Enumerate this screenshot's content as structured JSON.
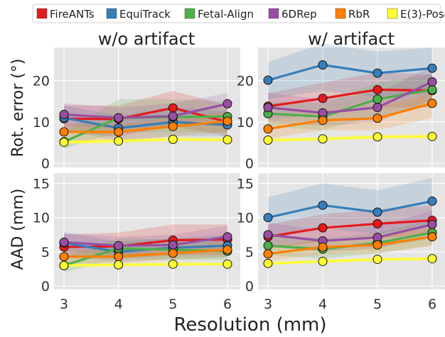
{
  "legend": {
    "placement": "top",
    "entries": [
      {
        "name": "FireANTs",
        "color": "#E41A1C"
      },
      {
        "name": "EquiTrack",
        "color": "#377EB8"
      },
      {
        "name": "Fetal-Align",
        "color": "#4DAF4A"
      },
      {
        "name": "6DRep",
        "color": "#984EA3"
      },
      {
        "name": "RbR",
        "color": "#FF7F00"
      },
      {
        "name": "E(3)-Pose",
        "color": "#FFFF33"
      }
    ]
  },
  "shared_xlabel": "Resolution (mm)",
  "chart_data": [
    {
      "type": "line",
      "title": "w/o artifact",
      "xlabel": "",
      "ylabel": "Rot. error (°)",
      "x": [
        3,
        4,
        5,
        6
      ],
      "xticks": [
        "3",
        "4",
        "5",
        "6"
      ],
      "yticks": [
        "0",
        "10",
        "20"
      ],
      "ylim": [
        -1,
        28
      ],
      "grid": true,
      "series": [
        {
          "name": "FireANTs",
          "values": [
            10.8,
            10.7,
            13.4,
            10.0
          ],
          "band_low": [
            7.5,
            6.5,
            9.0,
            6.5
          ],
          "band_high": [
            14.0,
            14.0,
            17.5,
            14.0
          ]
        },
        {
          "name": "EquiTrack",
          "values": [
            11.0,
            8.5,
            10.0,
            9.3
          ],
          "band_low": [
            8.0,
            5.5,
            6.5,
            6.5
          ],
          "band_high": [
            14.0,
            11.5,
            13.5,
            12.5
          ]
        },
        {
          "name": "Fetal-Align",
          "values": [
            5.2,
            11.0,
            11.2,
            11.3
          ],
          "band_low": [
            3.5,
            7.5,
            7.5,
            7.5
          ],
          "band_high": [
            7.5,
            15.5,
            15.5,
            15.0
          ]
        },
        {
          "name": "6DRep",
          "values": [
            11.8,
            11.0,
            11.4,
            14.4
          ],
          "band_low": [
            9.0,
            8.5,
            8.5,
            11.0
          ],
          "band_high": [
            14.5,
            13.5,
            14.5,
            17.0
          ]
        },
        {
          "name": "RbR",
          "values": [
            7.6,
            7.6,
            8.9,
            10.2
          ],
          "band_low": [
            5.5,
            5.5,
            6.5,
            7.5
          ],
          "band_high": [
            9.5,
            9.5,
            11.0,
            12.5
          ]
        },
        {
          "name": "E(3)-Pose",
          "values": [
            5.1,
            5.4,
            5.8,
            5.7
          ],
          "band_low": [
            4.5,
            4.8,
            5.2,
            5.1
          ],
          "band_high": [
            5.7,
            6.0,
            6.4,
            6.3
          ]
        }
      ]
    },
    {
      "type": "line",
      "title": "w/ artifact",
      "xlabel": "",
      "ylabel": "",
      "x": [
        3,
        4,
        5,
        6
      ],
      "xticks": [
        "3",
        "4",
        "5",
        "6"
      ],
      "yticks": [
        "0",
        "10",
        "20"
      ],
      "ylim": [
        -1,
        28
      ],
      "grid": true,
      "series": [
        {
          "name": "FireANTs",
          "values": [
            13.8,
            15.7,
            17.8,
            17.6
          ],
          "band_low": [
            10.5,
            12.0,
            13.5,
            13.5
          ],
          "band_high": [
            17.0,
            19.5,
            22.0,
            21.5
          ]
        },
        {
          "name": "EquiTrack",
          "values": [
            20.1,
            23.8,
            21.8,
            23.0
          ],
          "band_low": [
            15.5,
            17.5,
            16.0,
            17.0
          ],
          "band_high": [
            24.5,
            29.0,
            27.0,
            28.0
          ]
        },
        {
          "name": "Fetal-Align",
          "values": [
            12.0,
            11.3,
            15.5,
            17.8
          ],
          "band_low": [
            9.0,
            8.0,
            11.5,
            14.0
          ],
          "band_high": [
            15.0,
            14.5,
            19.5,
            21.5
          ]
        },
        {
          "name": "6DRep",
          "values": [
            13.5,
            12.2,
            13.5,
            19.7
          ],
          "band_low": [
            10.0,
            9.0,
            10.0,
            15.5
          ],
          "band_high": [
            17.0,
            15.5,
            17.0,
            23.5
          ]
        },
        {
          "name": "RbR",
          "values": [
            8.3,
            10.4,
            10.9,
            14.5
          ],
          "band_low": [
            6.0,
            8.0,
            8.0,
            11.0
          ],
          "band_high": [
            10.5,
            12.5,
            13.5,
            17.0
          ]
        },
        {
          "name": "E(3)-Pose",
          "values": [
            5.6,
            5.9,
            6.4,
            6.5
          ],
          "band_low": [
            5.0,
            5.3,
            5.8,
            5.9
          ],
          "band_high": [
            6.2,
            6.5,
            7.0,
            7.1
          ]
        }
      ]
    },
    {
      "type": "line",
      "title": "",
      "xlabel": "",
      "ylabel": "AAD (mm)",
      "x": [
        3,
        4,
        5,
        6
      ],
      "xticks": [
        "3",
        "4",
        "5",
        "6"
      ],
      "yticks": [
        "0",
        "5",
        "10",
        "15"
      ],
      "ylim": [
        -0.5,
        16.5
      ],
      "grid": true,
      "series": [
        {
          "name": "FireANTs",
          "values": [
            5.7,
            5.8,
            6.7,
            6.8
          ],
          "band_low": [
            4.0,
            4.0,
            4.5,
            4.5
          ],
          "band_high": [
            7.5,
            7.8,
            9.0,
            9.0
          ]
        },
        {
          "name": "EquiTrack",
          "values": [
            6.3,
            5.0,
            5.6,
            5.9
          ],
          "band_low": [
            4.5,
            3.5,
            4.0,
            4.2
          ],
          "band_high": [
            7.8,
            6.5,
            7.0,
            7.5
          ]
        },
        {
          "name": "Fetal-Align",
          "values": [
            3.0,
            5.5,
            5.3,
            5.1
          ],
          "band_low": [
            2.0,
            4.0,
            3.8,
            3.8
          ],
          "band_high": [
            4.2,
            7.0,
            6.8,
            6.5
          ]
        },
        {
          "name": "6DRep",
          "values": [
            6.4,
            5.9,
            6.0,
            7.2
          ],
          "band_low": [
            5.0,
            4.5,
            4.5,
            5.5
          ],
          "band_high": [
            7.8,
            7.2,
            7.5,
            8.8
          ]
        },
        {
          "name": "RbR",
          "values": [
            4.3,
            4.3,
            4.8,
            5.3
          ],
          "band_low": [
            3.3,
            3.3,
            3.8,
            4.2
          ],
          "band_high": [
            5.3,
            5.3,
            5.8,
            6.4
          ]
        },
        {
          "name": "E(3)-Pose",
          "values": [
            3.0,
            3.1,
            3.2,
            3.2
          ],
          "band_low": [
            2.7,
            2.8,
            2.9,
            2.9
          ],
          "band_high": [
            3.3,
            3.4,
            3.5,
            3.5
          ]
        }
      ]
    },
    {
      "type": "line",
      "title": "",
      "xlabel": "",
      "ylabel": "",
      "x": [
        3,
        4,
        5,
        6
      ],
      "xticks": [
        "3",
        "4",
        "5",
        "6"
      ],
      "yticks": [
        "0",
        "5",
        "10",
        "15"
      ],
      "ylim": [
        -0.5,
        16.5
      ],
      "grid": true,
      "series": [
        {
          "name": "FireANTs",
          "values": [
            7.2,
            8.5,
            9.1,
            9.6
          ],
          "band_low": [
            5.5,
            6.5,
            7.0,
            7.5
          ],
          "band_high": [
            9.0,
            10.5,
            11.2,
            11.8
          ]
        },
        {
          "name": "EquiTrack",
          "values": [
            10.0,
            11.8,
            10.8,
            12.4
          ],
          "band_low": [
            7.0,
            8.5,
            7.5,
            9.0
          ],
          "band_high": [
            13.0,
            15.0,
            14.0,
            15.8
          ]
        },
        {
          "name": "Fetal-Align",
          "values": [
            5.9,
            5.4,
            6.3,
            7.8
          ],
          "band_low": [
            4.5,
            4.0,
            4.8,
            6.0
          ],
          "band_high": [
            7.4,
            7.0,
            7.8,
            9.6
          ]
        },
        {
          "name": "6DRep",
          "values": [
            7.5,
            6.6,
            7.1,
            9.0
          ],
          "band_low": [
            5.8,
            5.0,
            5.5,
            7.0
          ],
          "band_high": [
            9.2,
            8.2,
            8.8,
            11.0
          ]
        },
        {
          "name": "RbR",
          "values": [
            4.7,
            5.7,
            6.0,
            7.2
          ],
          "band_low": [
            3.7,
            4.6,
            4.8,
            5.8
          ],
          "band_high": [
            5.8,
            6.8,
            7.2,
            8.6
          ]
        },
        {
          "name": "E(3)-Pose",
          "values": [
            3.3,
            3.6,
            3.9,
            4.0
          ],
          "band_low": [
            3.0,
            3.3,
            3.6,
            3.7
          ],
          "band_high": [
            3.6,
            3.9,
            4.2,
            4.3
          ]
        }
      ]
    }
  ]
}
